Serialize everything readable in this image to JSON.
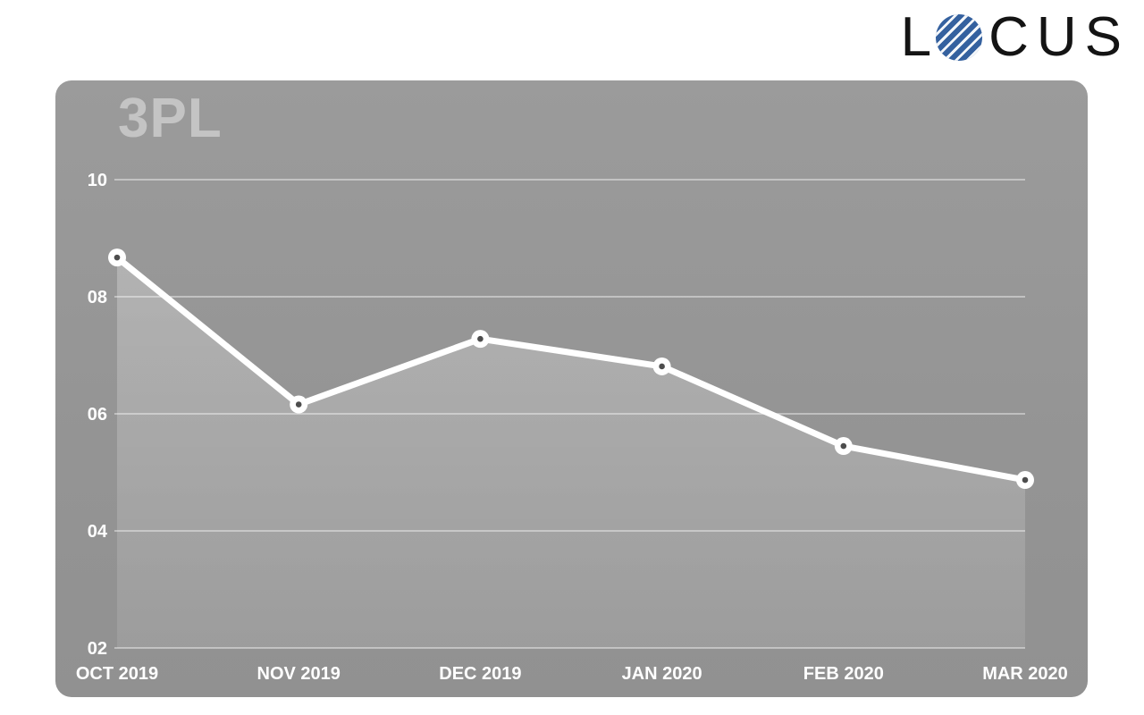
{
  "logo": {
    "prefix": "L",
    "suffix": "CUS",
    "globe_color": "#35619f",
    "stripe_color": "#ffffff",
    "text_color": "#141414"
  },
  "card": {
    "background": "#969696"
  },
  "chart_data": {
    "type": "line",
    "title": "3PL",
    "categories": [
      "OCT 2019",
      "NOV 2019",
      "DEC 2019",
      "JAN 2020",
      "FEB 2020",
      "MAR 2020"
    ],
    "series": [
      {
        "name": "3PL",
        "values": [
          8.67,
          6.16,
          7.28,
          6.81,
          5.45,
          4.87
        ]
      }
    ],
    "values": [
      8.67,
      6.16,
      7.28,
      6.81,
      5.45,
      4.87
    ],
    "xlabel": "",
    "ylabel": "",
    "ylim": [
      2,
      10
    ],
    "y_ticks": [
      {
        "value": 10,
        "label": "10"
      },
      {
        "value": 8,
        "label": "08"
      },
      {
        "value": 6,
        "label": "06"
      },
      {
        "value": 4,
        "label": "04"
      },
      {
        "value": 2,
        "label": "02"
      }
    ],
    "grid": true,
    "legend": "none",
    "colors": {
      "line": "#ffffff",
      "marker_fill": "#ffffff",
      "marker_dot": "#4d4d4d",
      "gridline": "rgba(255,255,255,0.55)",
      "tick_text": "#ffffff",
      "title_text": "#c4c4c4",
      "area_top_opacity": 0.26,
      "area_bottom_opacity": 0.1
    }
  }
}
